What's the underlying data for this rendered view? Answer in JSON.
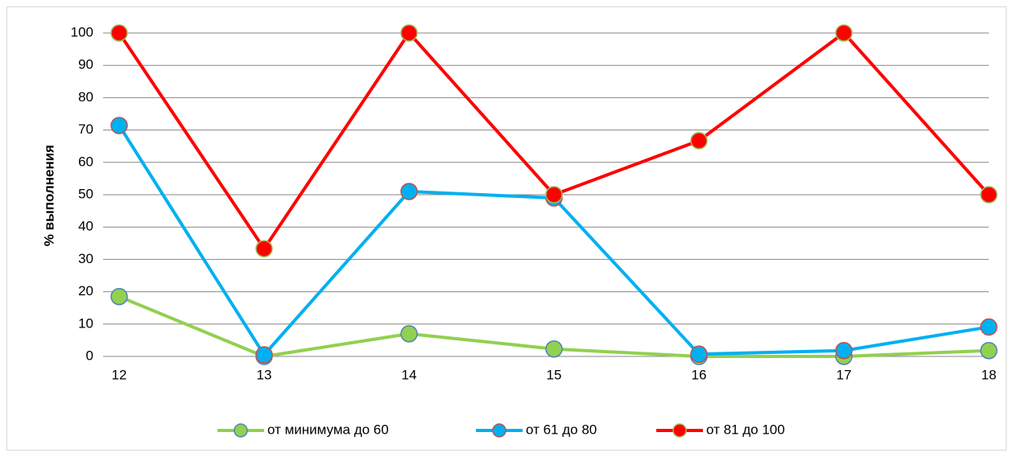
{
  "chart_data": {
    "type": "line",
    "y_label": "% выполнения",
    "categories": [
      "12",
      "13",
      "14",
      "15",
      "16",
      "17",
      "18"
    ],
    "series": [
      {
        "name": "от минимума до 60",
        "color": "#92d050",
        "marker_edge": "#4f81bd",
        "values": [
          18.5,
          0,
          7,
          2.3,
          0,
          0,
          1.8
        ]
      },
      {
        "name": "от 61 до 80",
        "color": "#00b0f0",
        "marker_edge": "#c0504d",
        "values": [
          71.4,
          0.5,
          51,
          49,
          0.7,
          1.8,
          9.1
        ]
      },
      {
        "name": "от 81 до 100",
        "color": "#ff0000",
        "marker_edge": "#9bbb59",
        "values": [
          100,
          33.3,
          100,
          50,
          66.7,
          100,
          50
        ]
      }
    ],
    "ylim": [
      0,
      100
    ],
    "yticks": [
      0,
      10,
      20,
      30,
      40,
      50,
      60,
      70,
      80,
      90,
      100
    ],
    "grid": true,
    "legend": "bottom"
  }
}
